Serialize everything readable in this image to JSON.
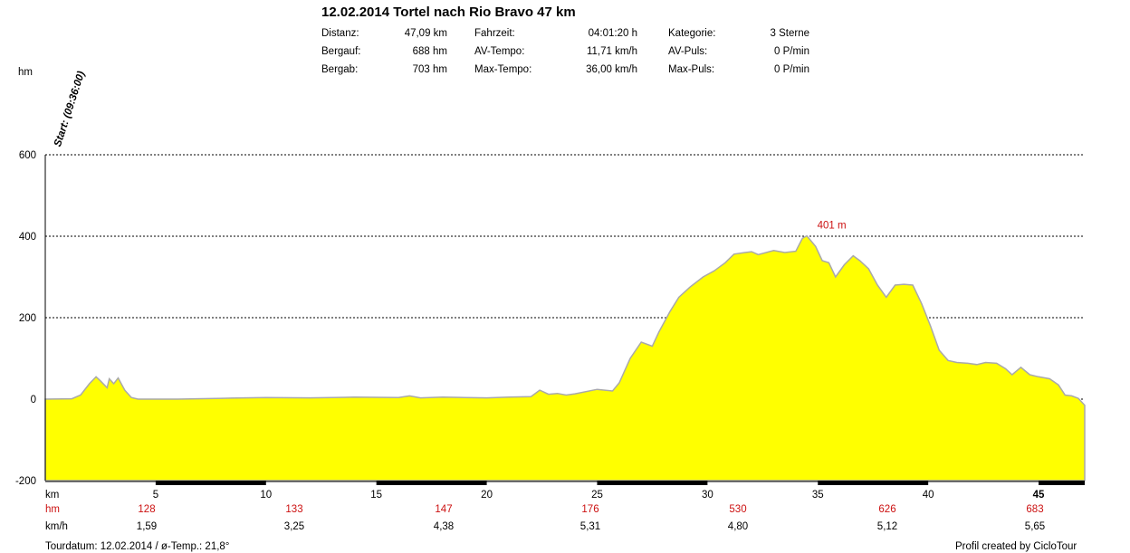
{
  "stats": {
    "col1": [
      {
        "label": "Distanz:",
        "value": "47,09 km"
      },
      {
        "label": "Bergauf:",
        "value": "688 hm"
      },
      {
        "label": "Bergab:",
        "value": "703 hm"
      }
    ],
    "col2": [
      {
        "label": "Fahrzeit:",
        "value": "04:01:20 h"
      },
      {
        "label": "AV-Tempo:",
        "value": "11,71 km/h"
      },
      {
        "label": "Max-Tempo:",
        "value": "36,00 km/h"
      }
    ],
    "col3": [
      {
        "label": "Kategorie:",
        "value": "3 Sterne"
      },
      {
        "label": "AV-Puls:",
        "value": "0 P/min"
      },
      {
        "label": "Max-Puls:",
        "value": "0 P/min"
      }
    ]
  },
  "start_label": "Start: (09:36:00)",
  "rows": {
    "km_label": "km",
    "hm_label": "hm",
    "kmh_label": "km/h",
    "hm_values": [
      "128",
      "133",
      "147",
      "176",
      "530",
      "626",
      "683"
    ],
    "kmh_values": [
      "1,59",
      "3,25",
      "4,38",
      "5,31",
      "4,80",
      "5,12",
      "5,65"
    ]
  },
  "footer": {
    "left": "Tourdatum: 12.02.2014  /  ø-Temp.: 21,8°",
    "right": "Profil created by CicloTour"
  },
  "colors": {
    "fill": "#ffff00",
    "outline": "#a9a9a9",
    "accent": "#cc1111"
  },
  "chart_data": {
    "type": "area",
    "title": "12.02.2014 Tortel nach Rio Bravo 47 km",
    "ylabel": "hm",
    "xlabel": "km",
    "ylim": [
      -200,
      600
    ],
    "xlim": [
      0,
      47.09
    ],
    "yticks": [
      "600",
      "400",
      "200",
      "0",
      "-200"
    ],
    "yticks_values": [
      600,
      400,
      200,
      0,
      -200
    ],
    "xticks": [
      "5",
      "10",
      "15",
      "20",
      "25",
      "30",
      "35",
      "40",
      "45"
    ],
    "xticks_values": [
      5,
      10,
      15,
      20,
      25,
      30,
      35,
      40,
      45
    ],
    "grid": "dotted horizontal",
    "annotation": {
      "text": "401 m",
      "x": 34.4,
      "y": 401
    },
    "series": [
      {
        "x": [
          0,
          1.2,
          1.6,
          2.0,
          2.3,
          2.5,
          2.8,
          2.9,
          3.1,
          3.3,
          3.6,
          3.9,
          4.2,
          5,
          6,
          8,
          10,
          12,
          14,
          16,
          16.5,
          17,
          18,
          19,
          20,
          21,
          22,
          22.4,
          22.8,
          23.2,
          23.6,
          24,
          25,
          25.7,
          26,
          26.5,
          27,
          27.5,
          27.8,
          28.3,
          28.7,
          29.2,
          29.8,
          30.3,
          30.8,
          31.2,
          31.7,
          32,
          32.3,
          33,
          33.5,
          34,
          34.3,
          34.5,
          34.9,
          35.2,
          35.5,
          35.8,
          36.2,
          36.6,
          36.9,
          37.3,
          37.7,
          38.1,
          38.5,
          38.9,
          39.3,
          39.7,
          40.1,
          40.5,
          40.9,
          41.3,
          41.8,
          42.2,
          42.6,
          43.1,
          43.5,
          43.8,
          44.2,
          44.6,
          45,
          45.5,
          45.9,
          46.2,
          46.5,
          46.8,
          47.09
        ],
        "y": [
          0,
          1,
          10,
          38,
          55,
          45,
          28,
          50,
          38,
          52,
          22,
          4,
          0,
          0,
          0,
          2,
          4,
          3,
          5,
          4,
          8,
          3,
          5,
          4,
          3,
          5,
          6,
          22,
          12,
          14,
          10,
          13,
          24,
          20,
          40,
          100,
          140,
          130,
          165,
          215,
          250,
          275,
          300,
          315,
          335,
          356,
          360,
          362,
          355,
          365,
          360,
          363,
          395,
          401,
          375,
          340,
          335,
          300,
          330,
          352,
          340,
          320,
          280,
          250,
          280,
          282,
          280,
          235,
          180,
          120,
          95,
          90,
          88,
          85,
          90,
          88,
          75,
          60,
          78,
          60,
          55,
          50,
          35,
          10,
          8,
          2,
          -15
        ]
      }
    ]
  }
}
